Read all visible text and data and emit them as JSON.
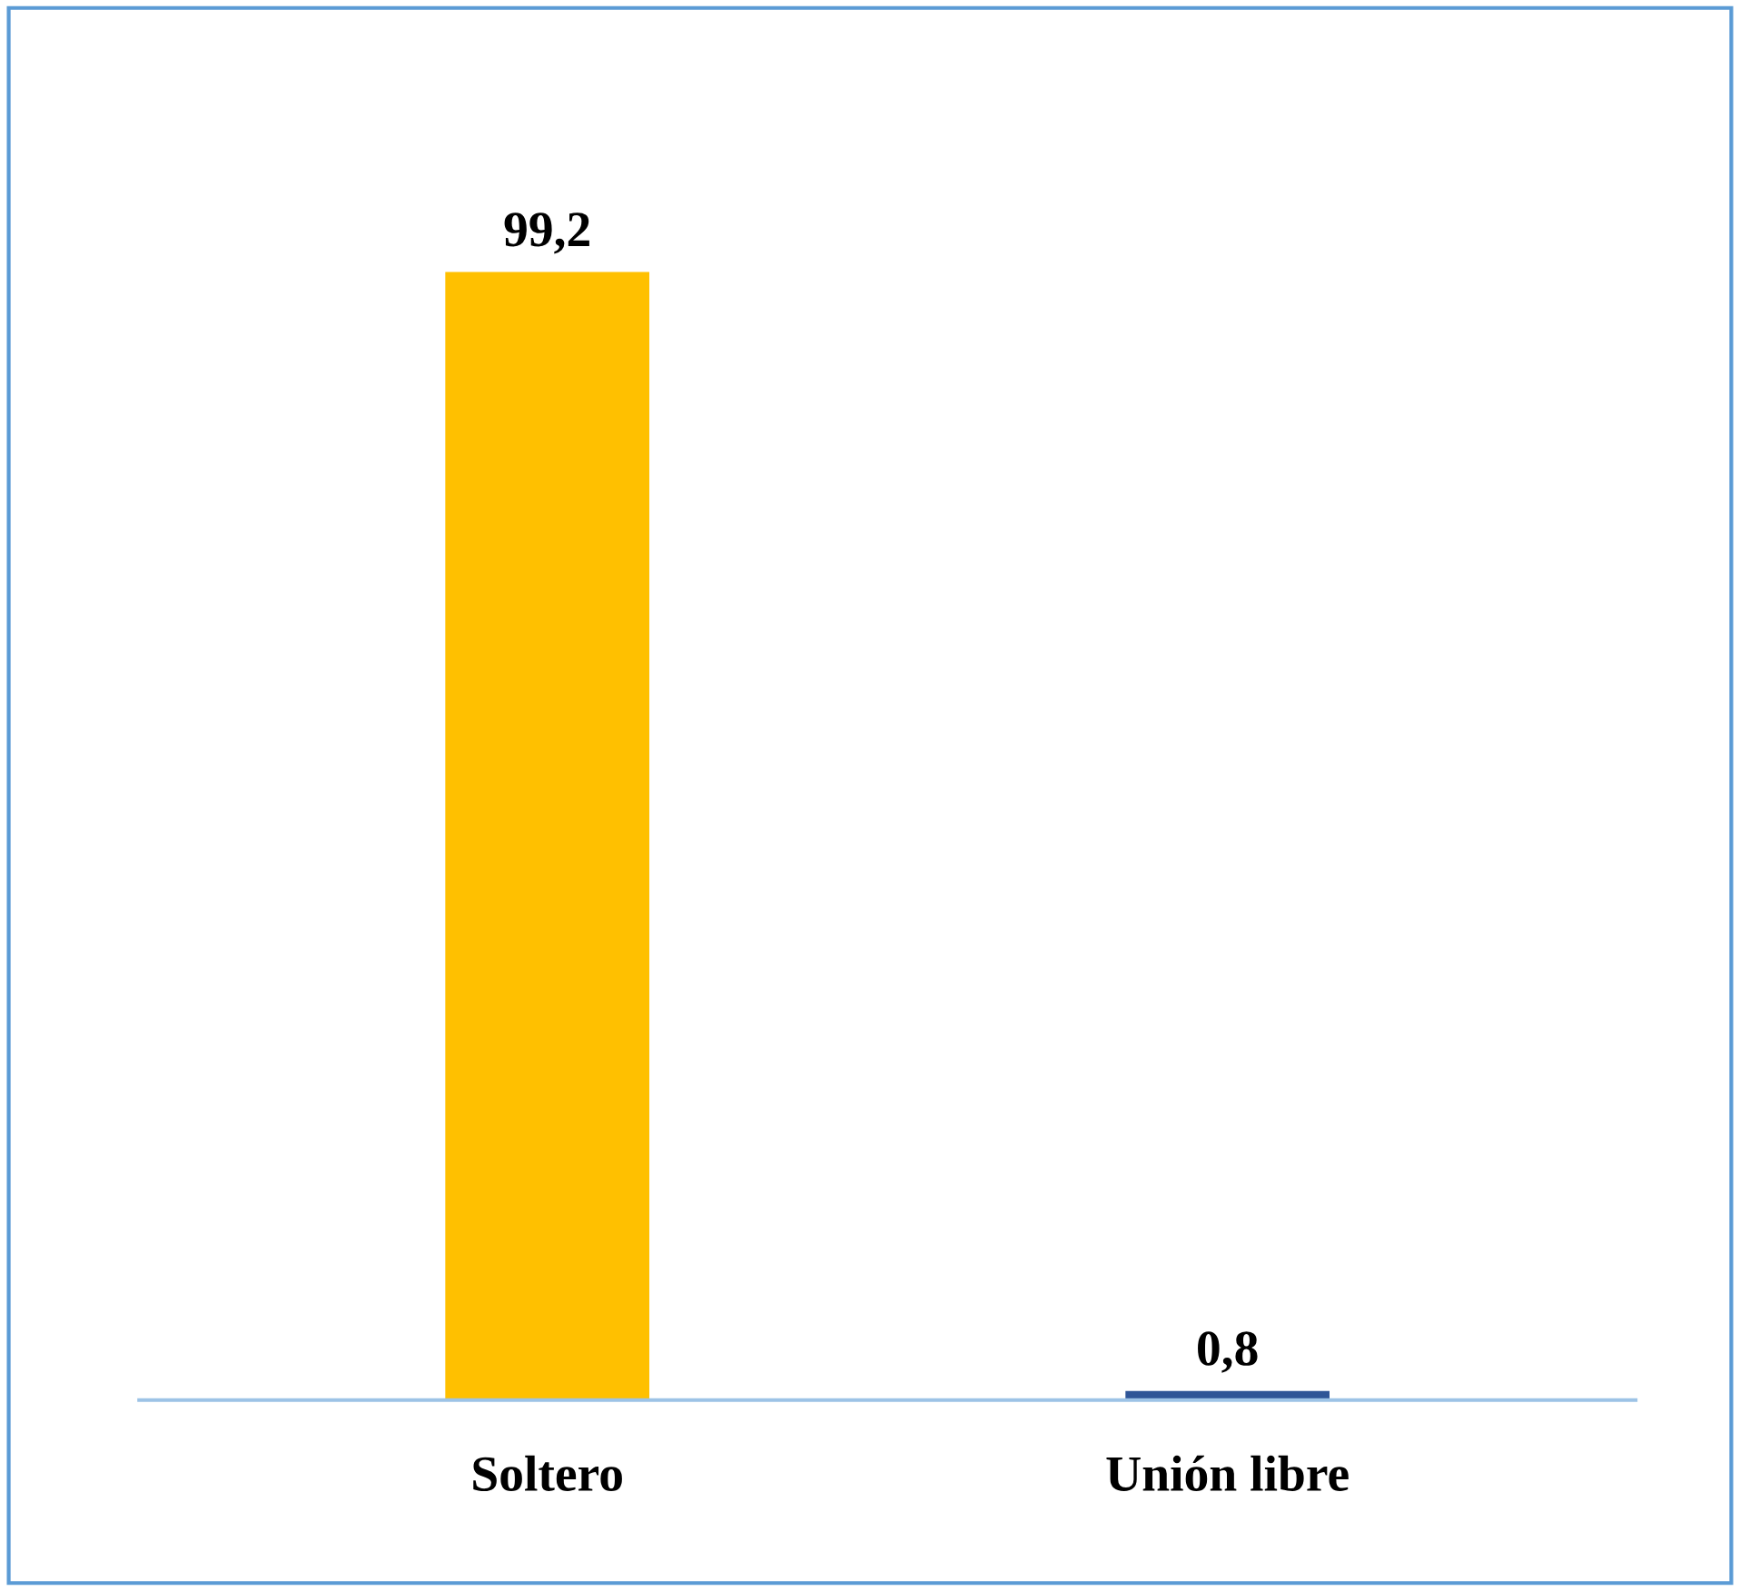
{
  "chart_data": {
    "type": "bar",
    "categories": [
      "Soltero",
      "Unión libre"
    ],
    "values": [
      99.2,
      0.8
    ],
    "colors": [
      "#ffc000",
      "#2f5597"
    ],
    "value_labels": [
      "99,2",
      "0,8"
    ],
    "grid": false,
    "legend": false
  }
}
